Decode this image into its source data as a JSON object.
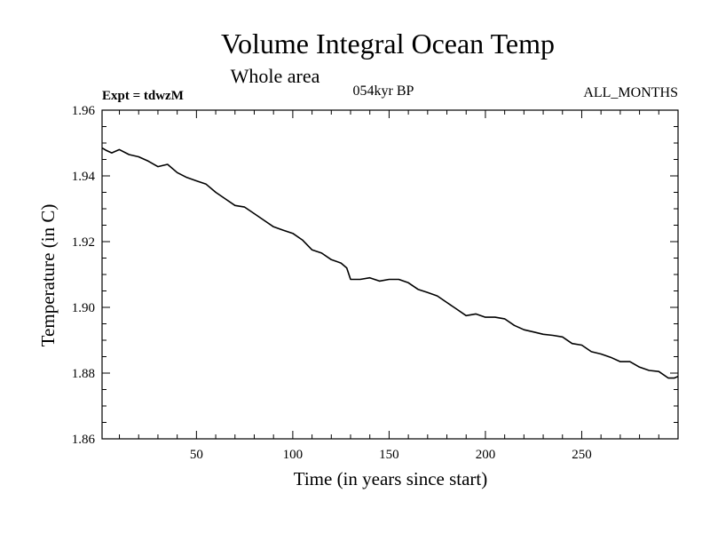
{
  "chart_data": {
    "type": "line",
    "title": "Volume Integral Ocean Temp",
    "subtitle": "Whole area",
    "annotations": {
      "left": "Expt = tdwzM",
      "center": "054kyr BP",
      "right": "ALL_MONTHS"
    },
    "xlabel": "Time (in years since start)",
    "ylabel": "Temperature (in C)",
    "xlim": [
      1,
      300
    ],
    "ylim": [
      1.86,
      1.96
    ],
    "xticks": [
      50,
      100,
      150,
      200,
      250
    ],
    "yticks": [
      "1.86",
      "1.88",
      "1.90",
      "1.92",
      "1.94",
      "1.96"
    ],
    "grid": false,
    "series": [
      {
        "x": [
          1,
          3,
          6,
          10,
          15,
          20,
          25,
          30,
          35,
          40,
          45,
          50,
          55,
          60,
          65,
          70,
          75,
          80,
          85,
          90,
          95,
          100,
          105,
          110,
          115,
          120,
          125,
          128,
          130,
          135,
          140,
          145,
          150,
          155,
          160,
          165,
          170,
          175,
          180,
          185,
          190,
          195,
          200,
          205,
          210,
          215,
          220,
          225,
          230,
          235,
          240,
          245,
          250,
          255,
          260,
          265,
          270,
          275,
          280,
          285,
          290,
          295,
          298,
          300
        ],
        "y": [
          1.9485,
          1.9478,
          1.947,
          1.948,
          1.9465,
          1.9458,
          1.9445,
          1.9428,
          1.9435,
          1.941,
          1.9395,
          1.9385,
          1.9375,
          1.935,
          1.933,
          1.931,
          1.9305,
          1.9285,
          1.9265,
          1.9245,
          1.9235,
          1.9225,
          1.9205,
          1.9175,
          1.9165,
          1.9145,
          1.9135,
          1.912,
          1.9085,
          1.9085,
          1.909,
          1.908,
          1.9085,
          1.9085,
          1.9075,
          1.9055,
          1.9045,
          1.9035,
          1.9015,
          1.8995,
          1.8975,
          1.898,
          1.897,
          1.897,
          1.8965,
          1.8945,
          1.8932,
          1.8925,
          1.8918,
          1.8915,
          1.891,
          1.889,
          1.8885,
          1.8865,
          1.8858,
          1.8848,
          1.8835,
          1.8835,
          1.8818,
          1.8808,
          1.8805,
          1.8785,
          1.8785,
          1.879
        ]
      }
    ]
  }
}
